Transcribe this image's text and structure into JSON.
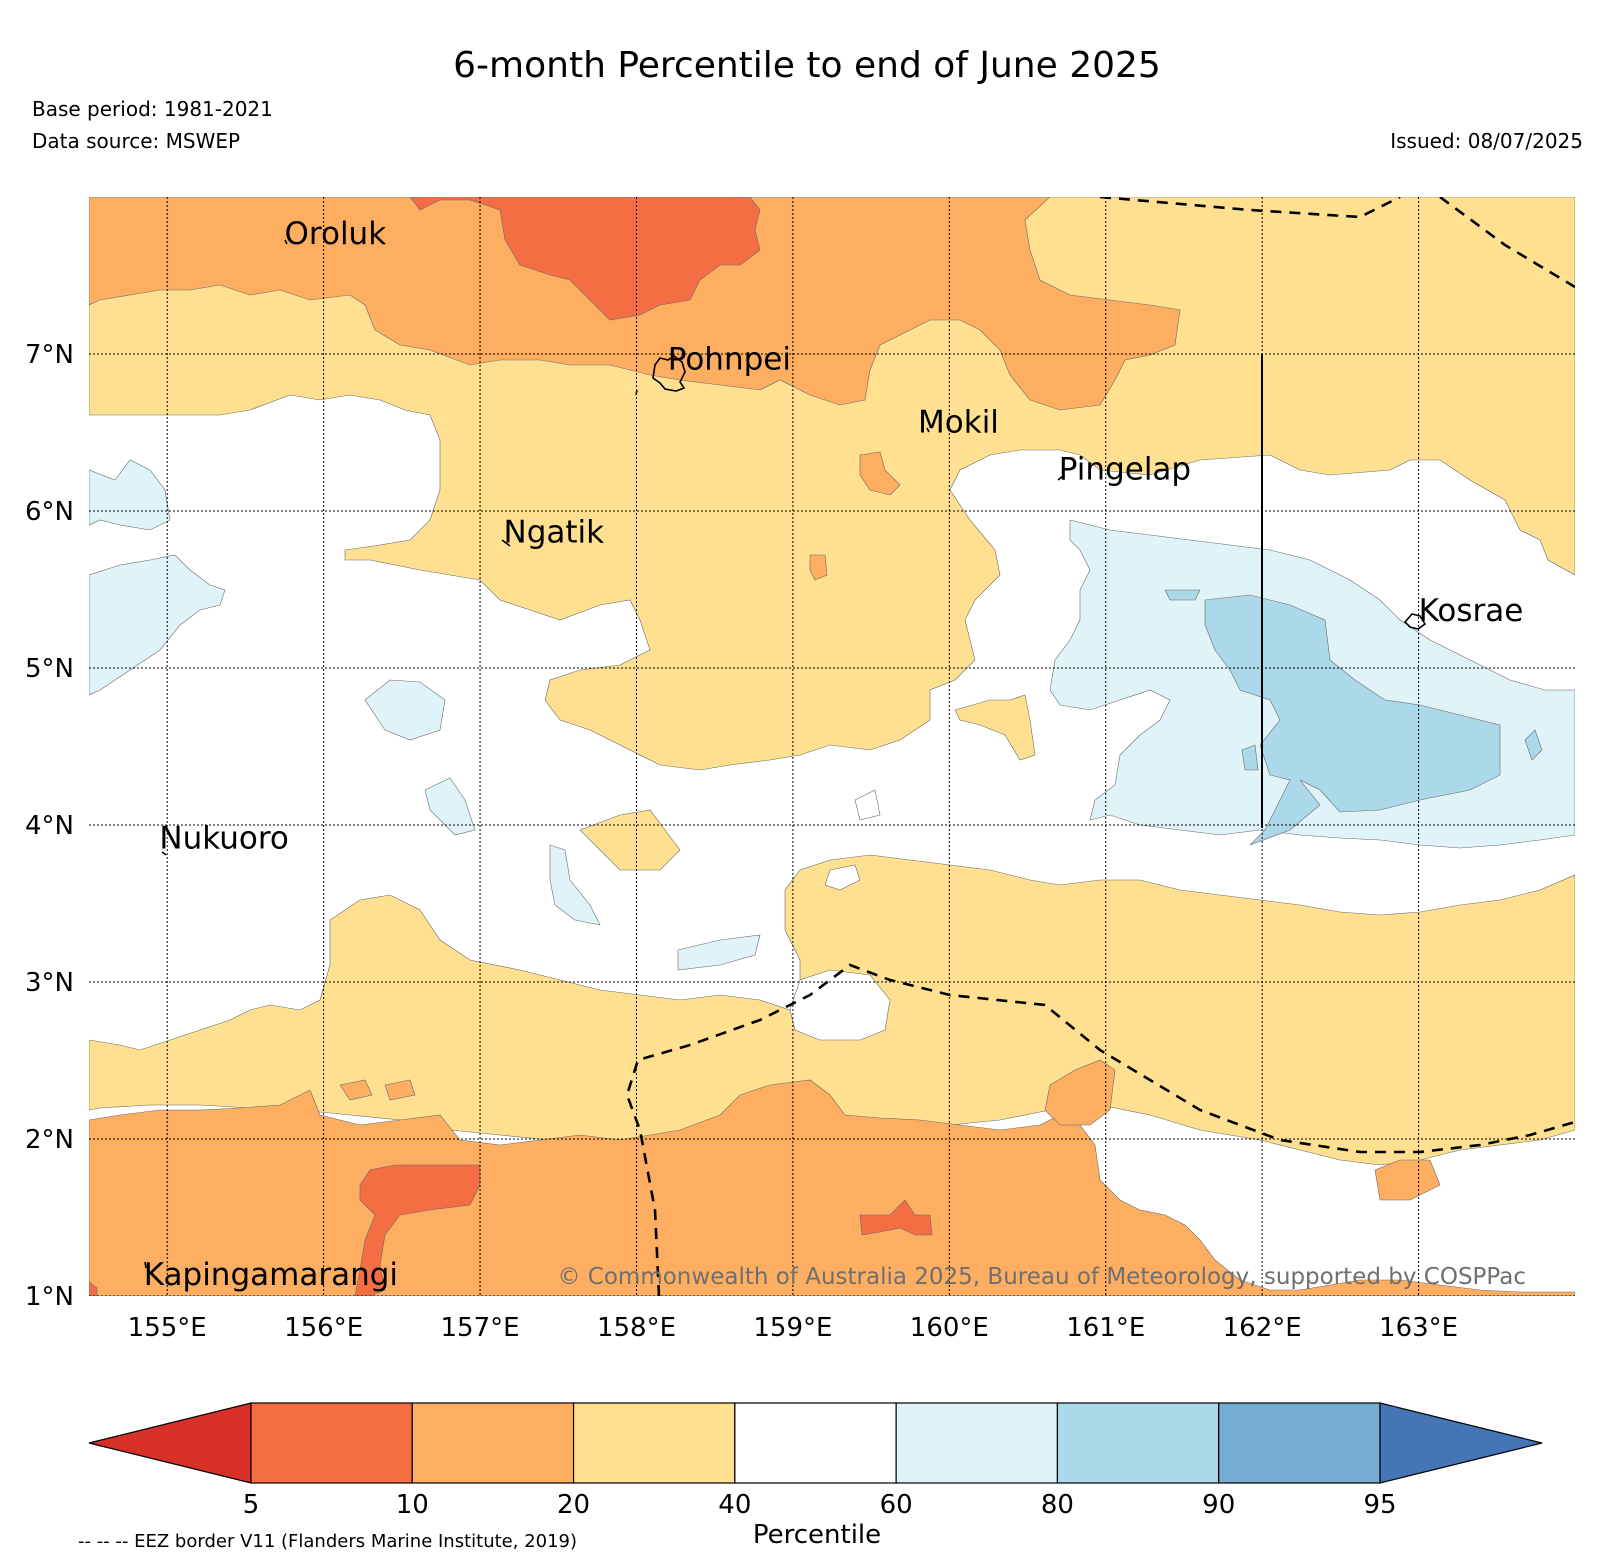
{
  "header": {
    "title": "6-month Percentile to end of June 2025",
    "base_period": "Base period: 1981-2021",
    "data_source": "Data source: MSWEP",
    "issued": "Issued: 08/07/2025"
  },
  "map": {
    "extent": {
      "lon_min": 154.5,
      "lon_max": 164.0,
      "lat_min": 1.0,
      "lat_max": 8.0
    },
    "lon_ticks": [
      {
        "value": 155,
        "label": "155°E"
      },
      {
        "value": 156,
        "label": "156°E"
      },
      {
        "value": 157,
        "label": "157°E"
      },
      {
        "value": 158,
        "label": "158°E"
      },
      {
        "value": 159,
        "label": "159°E"
      },
      {
        "value": 160,
        "label": "160°E"
      },
      {
        "value": 161,
        "label": "161°E"
      },
      {
        "value": 162,
        "label": "162°E"
      },
      {
        "value": 163,
        "label": "163°E"
      }
    ],
    "lat_ticks": [
      {
        "value": 1,
        "label": "1°N"
      },
      {
        "value": 2,
        "label": "2°N"
      },
      {
        "value": 3,
        "label": "3°N"
      },
      {
        "value": 4,
        "label": "4°N"
      },
      {
        "value": 5,
        "label": "5°N"
      },
      {
        "value": 6,
        "label": "6°N"
      },
      {
        "value": 7,
        "label": "7°N"
      }
    ],
    "places": [
      {
        "name": "Oroluk",
        "lon": 155.75,
        "lat": 7.7
      },
      {
        "name": "Pohnpei",
        "lon": 158.2,
        "lat": 6.9
      },
      {
        "name": "Mokil",
        "lon": 159.8,
        "lat": 6.5
      },
      {
        "name": "Pingelap",
        "lon": 160.7,
        "lat": 6.2
      },
      {
        "name": "Ngatik",
        "lon": 157.15,
        "lat": 5.8
      },
      {
        "name": "Kosrae",
        "lon": 163.0,
        "lat": 5.3
      },
      {
        "name": "Nukuoro",
        "lon": 154.95,
        "lat": 3.85
      },
      {
        "name": "Kapingamarangi",
        "lon": 154.85,
        "lat": 1.07
      }
    ],
    "copyright": "© Commonwealth of Australia 2025, Bureau of Meteorology, supported by COSPPac"
  },
  "colorbar": {
    "label": "Percentile",
    "ticks": [
      "5",
      "10",
      "20",
      "40",
      "60",
      "80",
      "90",
      "95"
    ],
    "bins": [
      {
        "range": "<5",
        "color": "#d73027"
      },
      {
        "range": "5-10",
        "color": "#f46d43"
      },
      {
        "range": "10-20",
        "color": "#fdae61"
      },
      {
        "range": "20-40",
        "color": "#fee090"
      },
      {
        "range": "40-60",
        "color": "#ffffff"
      },
      {
        "range": "60-80",
        "color": "#e0f3f8"
      },
      {
        "range": "80-90",
        "color": "#abd9e9"
      },
      {
        "range": "90-95",
        "color": "#74add1"
      },
      {
        "range": ">95",
        "color": "#4575b4"
      }
    ]
  },
  "footer": {
    "eez_note": "-- -- -- EEZ border V11 (Flanders Marine Institute, 2019)"
  }
}
